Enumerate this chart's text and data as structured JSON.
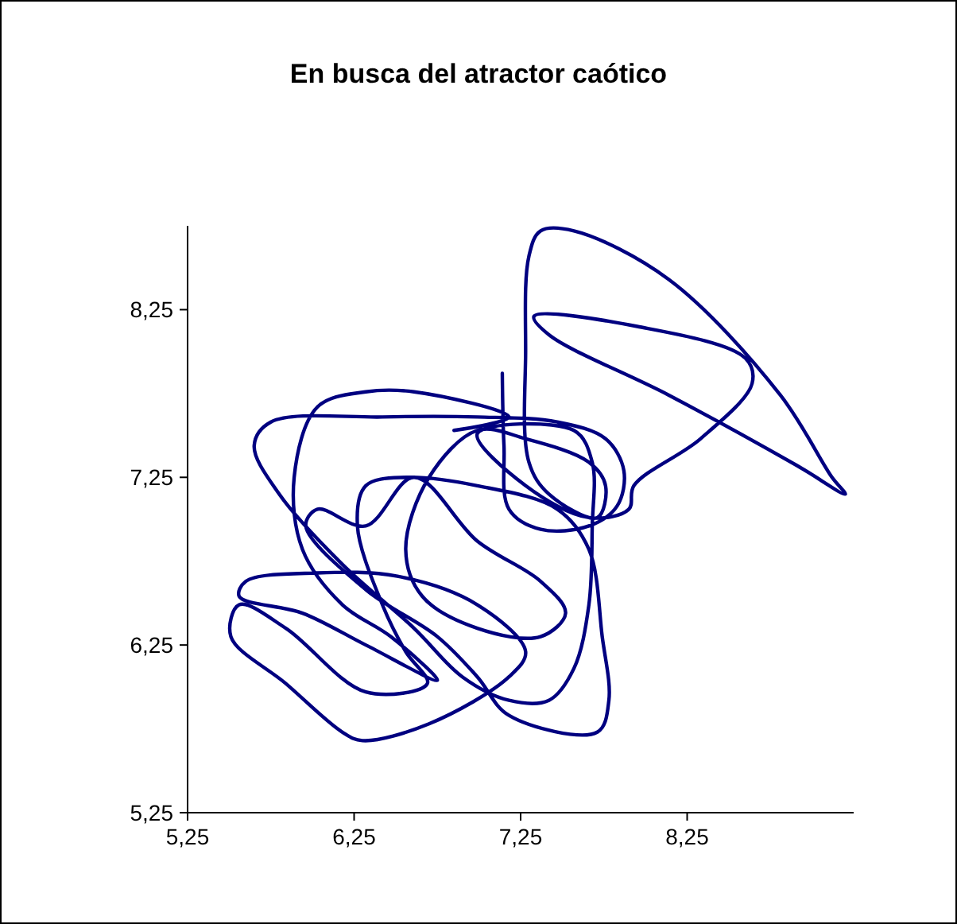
{
  "chart_data": {
    "type": "line",
    "title": "En busca del atractor caótico",
    "xlim": [
      5.25,
      9.25
    ],
    "ylim": [
      5.25,
      8.75
    ],
    "xticks": [
      {
        "value": 5.25,
        "label": "5,25"
      },
      {
        "value": 6.25,
        "label": "6,25"
      },
      {
        "value": 7.25,
        "label": "7,25"
      },
      {
        "value": 8.25,
        "label": "8,25"
      }
    ],
    "yticks": [
      {
        "value": 5.25,
        "label": "5,25"
      },
      {
        "value": 6.25,
        "label": "6,25"
      },
      {
        "value": 7.25,
        "label": "7,25"
      },
      {
        "value": 8.25,
        "label": "8,25"
      }
    ],
    "marker": "none",
    "line_style": "solid",
    "series": [
      {
        "color": "#000080",
        "x": [
          7.14,
          7.15,
          7.18,
          7.37,
          7.66,
          7.83,
          7.87,
          7.76,
          7.47,
          6.99,
          6.42,
          5.75,
          5.65,
          5.8,
          6.18,
          6.61,
          6.9,
          7.18,
          7.42,
          7.57,
          7.66,
          7.68,
          7.68,
          7.57,
          6.99,
          7.28,
          7.66,
          7.9,
          7.93,
          8.33,
          8.64,
          8.6,
          7.95,
          7.33,
          7.42,
          8.14,
          8.91,
          9.2,
          9.12,
          8.81,
          8.14,
          7.57,
          7.37,
          7.3,
          7.28,
          7.3,
          7.42,
          7.71,
          7.76,
          7.66,
          7.28,
          6.99,
          6.7,
          6.56,
          6.66,
          6.99,
          7.37,
          7.52,
          7.37,
          6.99,
          6.61,
          6.32,
          6.03,
          5.96,
          6.32,
          6.75,
          6.99,
          7.18,
          7.71,
          7.78,
          7.74,
          7.66,
          7.47,
          6.99,
          6.56,
          6.32,
          6.27,
          6.42,
          6.56,
          6.69,
          6.32,
          5.84,
          5.56,
          5.51,
          5.84,
          6.18,
          6.3,
          6.7,
          7.18,
          7.28,
          6.99,
          6.51,
          6.03,
          5.6,
          5.56,
          5.94,
          6.32,
          6.75,
          6.47,
          6.18,
          5.94,
          5.89,
          6.03,
          6.32,
          6.61,
          7.18,
          6.85
        ],
        "values": [
          7.87,
          7.44,
          7.06,
          6.94,
          6.96,
          7.08,
          7.29,
          7.48,
          7.58,
          7.61,
          7.61,
          7.58,
          7.44,
          7.15,
          6.73,
          6.35,
          6.06,
          5.92,
          5.92,
          6.11,
          6.49,
          6.96,
          7.34,
          7.53,
          7.51,
          7.2,
          7.01,
          7.06,
          7.2,
          7.48,
          7.81,
          7.96,
          8.15,
          8.21,
          8.1,
          7.74,
          7.32,
          7.15,
          7.25,
          7.74,
          8.43,
          8.72,
          8.72,
          8.57,
          8.0,
          7.34,
          7.15,
          7.01,
          7.2,
          7.34,
          7.48,
          7.53,
          7.25,
          6.82,
          6.54,
          6.35,
          6.3,
          6.44,
          6.63,
          6.87,
          7.25,
          6.96,
          7.06,
          6.96,
          6.58,
          6.3,
          6.06,
          5.83,
          5.73,
          5.92,
          6.3,
          6.82,
          7.06,
          7.2,
          7.25,
          7.2,
          6.96,
          6.49,
          6.21,
          6.02,
          5.97,
          6.35,
          6.49,
          6.3,
          6.02,
          5.73,
          5.68,
          5.78,
          6.06,
          6.21,
          6.49,
          6.66,
          6.68,
          6.63,
          6.54,
          6.44,
          6.25,
          6.04,
          6.3,
          6.49,
          6.82,
          7.25,
          7.67,
          7.76,
          7.76,
          7.61,
          7.53
        ]
      }
    ]
  }
}
